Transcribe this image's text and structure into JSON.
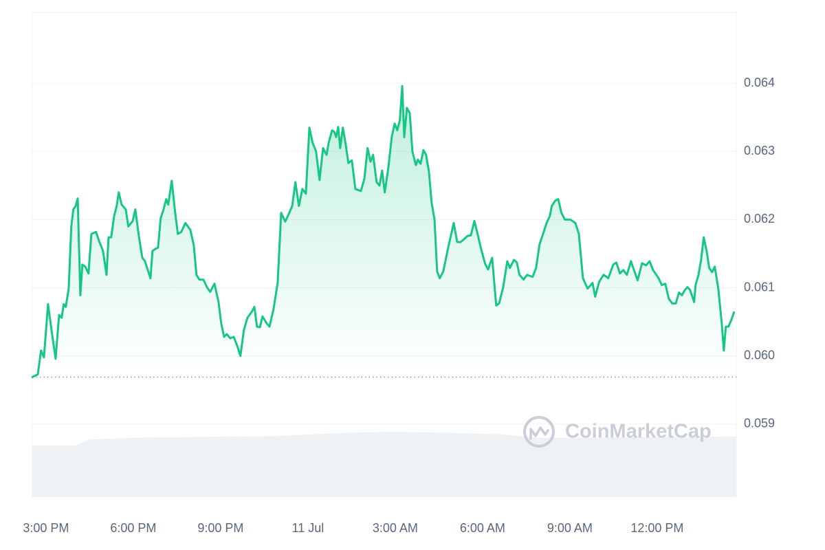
{
  "chart_data": {
    "type": "line",
    "series": [
      {
        "color": "#16c784",
        "x": [
          -0.47,
          -0.28,
          -0.17,
          -0.07,
          0.07,
          0.19,
          0.33,
          0.45,
          0.54,
          0.61,
          0.68,
          0.78,
          0.87,
          0.94,
          1.02,
          1.09,
          1.18,
          1.25,
          1.35,
          1.46,
          1.56,
          1.72,
          1.82,
          1.96,
          2.08,
          2.15,
          2.24,
          2.34,
          2.43,
          2.5,
          2.6,
          2.74,
          2.83,
          2.98,
          3.07,
          3.19,
          3.31,
          3.4,
          3.59,
          3.66,
          3.76,
          3.85,
          3.94,
          4.04,
          4.13,
          4.2,
          4.32,
          4.44,
          4.53,
          4.65,
          4.79,
          4.96,
          5.08,
          5.17,
          5.27,
          5.41,
          5.53,
          5.64,
          5.79,
          5.93,
          6.02,
          6.12,
          6.21,
          6.33,
          6.45,
          6.57,
          6.68,
          6.8,
          6.92,
          7.06,
          7.16,
          7.25,
          7.35,
          7.44,
          7.58,
          7.68,
          7.82,
          7.96,
          8.08,
          8.22,
          8.34,
          8.46,
          8.57,
          8.69,
          8.81,
          8.93,
          9.05,
          9.16,
          9.28,
          9.4,
          9.52,
          9.64,
          9.71,
          9.83,
          9.9,
          9.97,
          10.04,
          10.11,
          10.2,
          10.3,
          10.39,
          10.51,
          10.63,
          10.82,
          10.94,
          11.05,
          11.15,
          11.24,
          11.36,
          11.46,
          11.55,
          11.64,
          11.76,
          11.88,
          11.98,
          12.07,
          12.16,
          12.24,
          12.31,
          12.4,
          12.5,
          12.59,
          12.71,
          12.78,
          12.87,
          12.97,
          13.06,
          13.16,
          13.25,
          13.35,
          13.44,
          13.53,
          13.65,
          13.82,
          14.01,
          14.13,
          14.24,
          14.36,
          14.48,
          14.6,
          14.72,
          14.83,
          14.95,
          15.09,
          15.19,
          15.33,
          15.47,
          15.57,
          15.71,
          15.85,
          15.94,
          16.08,
          16.18,
          16.27,
          16.41,
          16.53,
          16.72,
          16.84,
          16.96,
          17.08,
          17.2,
          17.31,
          17.38,
          17.5,
          17.6,
          17.71,
          17.83,
          18.02,
          18.19,
          18.31,
          18.45,
          18.61,
          18.78,
          18.87,
          19.01,
          19.16,
          19.32,
          19.49,
          19.6,
          19.72,
          19.84,
          19.96,
          20.1,
          20.22,
          20.33,
          20.48,
          20.62,
          20.74,
          20.86,
          21.05,
          21.16,
          21.28,
          21.4,
          21.52,
          21.64,
          21.75,
          21.85,
          21.94,
          22.04,
          22.13,
          22.27,
          22.32,
          22.42,
          22.51,
          22.6,
          22.7,
          22.79,
          22.89,
          22.98,
          23.1,
          23.22,
          23.29,
          23.36,
          23.45,
          23.55,
          23.64
        ],
        "values": [
          0.05969,
          0.05973,
          0.06008,
          0.05998,
          0.06076,
          0.06038,
          0.05996,
          0.0606,
          0.06056,
          0.06076,
          0.06072,
          0.06099,
          0.0619,
          0.06215,
          0.0622,
          0.06231,
          0.06089,
          0.06134,
          0.06131,
          0.06121,
          0.06179,
          0.06182,
          0.06169,
          0.06154,
          0.06119,
          0.06174,
          0.06174,
          0.06205,
          0.0622,
          0.0624,
          0.06222,
          0.06215,
          0.0619,
          0.06198,
          0.06215,
          0.06176,
          0.06144,
          0.06139,
          0.06114,
          0.06154,
          0.06157,
          0.06159,
          0.06202,
          0.06215,
          0.0623,
          0.06222,
          0.06257,
          0.0621,
          0.06179,
          0.06182,
          0.06195,
          0.06185,
          0.06162,
          0.06119,
          0.06112,
          0.06112,
          0.06101,
          0.06094,
          0.06106,
          0.06079,
          0.06048,
          0.06028,
          0.06032,
          0.06026,
          0.06028,
          0.06015,
          0.06,
          0.06038,
          0.06056,
          0.06064,
          0.06072,
          0.06043,
          0.06042,
          0.06058,
          0.06048,
          0.06043,
          0.06069,
          0.06107,
          0.0621,
          0.06197,
          0.06208,
          0.0622,
          0.06255,
          0.0622,
          0.06245,
          0.06238,
          0.06335,
          0.06313,
          0.063,
          0.06258,
          0.06305,
          0.06295,
          0.06312,
          0.06331,
          0.06329,
          0.06321,
          0.06336,
          0.06305,
          0.06335,
          0.0631,
          0.06283,
          0.06287,
          0.06245,
          0.06242,
          0.0626,
          0.06305,
          0.06285,
          0.06295,
          0.06255,
          0.0625,
          0.06272,
          0.0624,
          0.06275,
          0.06321,
          0.06341,
          0.06331,
          0.06346,
          0.06396,
          0.06321,
          0.06364,
          0.06356,
          0.063,
          0.0628,
          0.06288,
          0.06282,
          0.06302,
          0.06295,
          0.0627,
          0.06225,
          0.062,
          0.06124,
          0.06114,
          0.06124,
          0.06159,
          0.06195,
          0.06167,
          0.06167,
          0.06171,
          0.06176,
          0.06177,
          0.06198,
          0.06179,
          0.06157,
          0.06135,
          0.06127,
          0.06144,
          0.06074,
          0.06077,
          0.06101,
          0.06139,
          0.06129,
          0.06141,
          0.06137,
          0.06119,
          0.06112,
          0.06119,
          0.06116,
          0.06129,
          0.06164,
          0.06179,
          0.06195,
          0.06205,
          0.0622,
          0.06228,
          0.0623,
          0.0621,
          0.062,
          0.062,
          0.06195,
          0.06179,
          0.06114,
          0.06099,
          0.06107,
          0.06087,
          0.06109,
          0.06119,
          0.06114,
          0.06134,
          0.06137,
          0.06121,
          0.06126,
          0.06119,
          0.06139,
          0.06124,
          0.06111,
          0.06136,
          0.06133,
          0.06139,
          0.06126,
          0.06114,
          0.06104,
          0.06106,
          0.06084,
          0.06077,
          0.06077,
          0.06093,
          0.06089,
          0.06096,
          0.06101,
          0.06097,
          0.06079,
          0.06104,
          0.06119,
          0.06141,
          0.06174,
          0.06154,
          0.06129,
          0.06123,
          0.06131,
          0.06099,
          0.06048,
          0.06008,
          0.06043,
          0.06043,
          0.06053,
          0.06064
        ]
      },
      {
        "color": "#eff2f5",
        "axis": "y2",
        "x": [
          -0.47,
          1.0,
          1.5,
          3.5,
          8.0,
          10.0,
          12.0,
          15.5,
          17.0,
          23.72
        ],
        "values": [
          10.6,
          10.6,
          11.9,
          12.3,
          12.6,
          13.2,
          13.5,
          13.0,
          12.2,
          12.5
        ]
      }
    ],
    "xlim": [
      -0.47,
      23.72
    ],
    "xticks": [
      {
        "value": 0,
        "label": "3:00 PM"
      },
      {
        "value": 3,
        "label": "6:00 PM"
      },
      {
        "value": 6,
        "label": "9:00 PM"
      },
      {
        "value": 9,
        "label": "11 Jul"
      },
      {
        "value": 12,
        "label": "3:00 AM"
      },
      {
        "value": 15,
        "label": "6:00 AM"
      },
      {
        "value": 18,
        "label": "9:00 AM"
      },
      {
        "value": 21,
        "label": "12:00 PM"
      }
    ],
    "ylim": [
      0.05793,
      0.06504
    ],
    "yticks": [
      0.059,
      {
        "value": 0.06,
        "label": "0.060"
      },
      0.061,
      0.062,
      0.063,
      0.064
    ],
    "y2lim": [
      0,
      100
    ],
    "reference_line": 0.05969,
    "watermark": "CoinMarketCap",
    "grid": true
  }
}
